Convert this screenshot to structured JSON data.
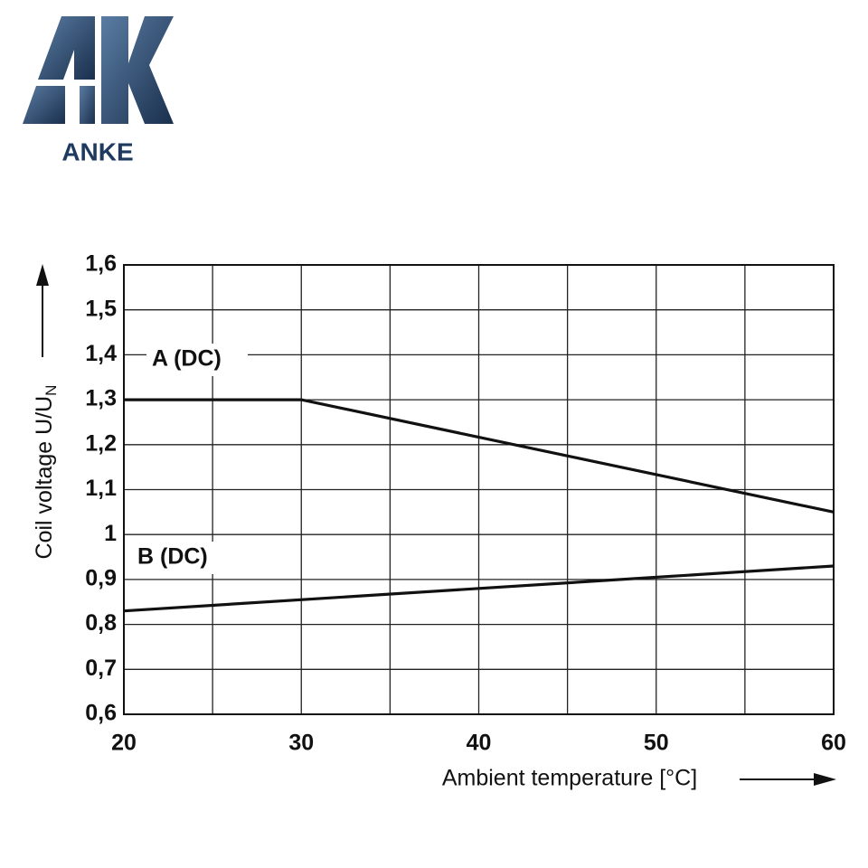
{
  "logo": {
    "text": "ANKE"
  },
  "chart_data": {
    "type": "line",
    "xlabel": "Ambient temperature [°C]",
    "ylabel": {
      "text": "Coil voltage U/U",
      "subscript": "N"
    },
    "xlim": [
      20,
      60
    ],
    "xticks": [
      20,
      30,
      40,
      50,
      60
    ],
    "xgrid_minor": [
      25,
      35,
      45,
      55
    ],
    "ylim": [
      0.6,
      1.6
    ],
    "yticks": [
      {
        "value": 0.6,
        "label": "0,6"
      },
      {
        "value": 0.7,
        "label": "0,7"
      },
      {
        "value": 0.8,
        "label": "0,8"
      },
      {
        "value": 0.9,
        "label": "0,9"
      },
      1,
      {
        "value": 1.1,
        "label": "1,1"
      },
      {
        "value": 1.2,
        "label": "1,2"
      },
      {
        "value": 1.3,
        "label": "1,3"
      },
      {
        "value": 1.4,
        "label": "1,4"
      },
      {
        "value": 1.5,
        "label": "1,5"
      },
      {
        "value": 1.6,
        "label": "1,6"
      }
    ],
    "grid": true,
    "series": [
      {
        "name": "A (DC)",
        "color": "#111111",
        "x": [
          20,
          30,
          60
        ],
        "values": [
          1.3,
          1.3,
          1.05
        ]
      },
      {
        "name": "B (DC)",
        "color": "#111111",
        "x": [
          20,
          60
        ],
        "values": [
          0.83,
          0.93
        ]
      }
    ]
  }
}
